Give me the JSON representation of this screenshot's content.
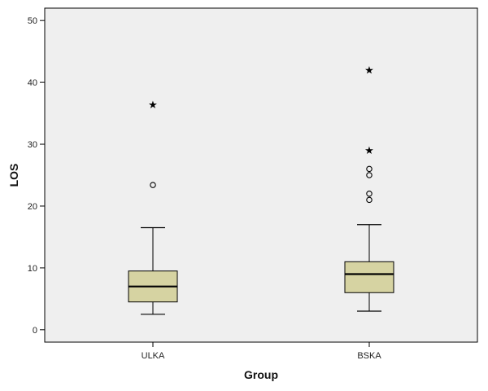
{
  "chart_data": {
    "type": "boxplot",
    "title": "",
    "xlabel": "Group",
    "ylabel": "LOS",
    "ylim": [
      -2,
      52
    ],
    "yticks": [
      0,
      10,
      20,
      30,
      40,
      50
    ],
    "grid": false,
    "colors": {
      "plot_background": "#efefef",
      "box_fill": "#d6d3a2",
      "line": "#000000"
    },
    "categories": [
      "ULKA",
      "BSKA"
    ],
    "boxes": [
      {
        "category": "ULKA",
        "whisker_low": 2.5,
        "q1": 4.5,
        "median": 7,
        "q3": 9.5,
        "whisker_high": 16.5,
        "outliers": [
          23.4
        ],
        "extremes": [
          36.4
        ]
      },
      {
        "category": "BSKA",
        "whisker_low": 3,
        "q1": 6,
        "median": 9,
        "q3": 11,
        "whisker_high": 17,
        "outliers": [
          21,
          22,
          25,
          26
        ],
        "extremes": [
          29,
          42
        ]
      }
    ]
  }
}
